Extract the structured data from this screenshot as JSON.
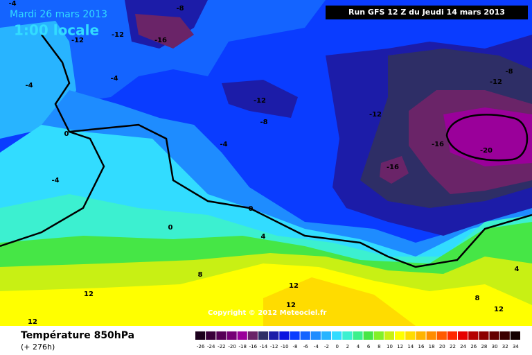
{
  "header": {
    "date": "Mardi 26 mars 2013",
    "time": "1:00 locale",
    "run": "Run GFS 12 Z du Jeudi 14 mars 2013",
    "copyright": "Copyright © 2012 Meteociel.fr"
  },
  "footer": {
    "title": "Température 850hPa",
    "lead": "(+ 276h)"
  },
  "contour_labels": [
    "-4",
    "-8",
    "-12",
    "-12",
    "-16",
    "-4",
    "-4",
    "-12",
    "-8",
    "-12",
    "-12",
    "-8",
    "-16",
    "-20",
    "-16",
    "-4",
    "0",
    "-4",
    "0",
    "0",
    "4",
    "8",
    "12",
    "12",
    "12",
    "8",
    "4",
    "12",
    "12"
  ],
  "scale": [
    {
      "value": -26,
      "color": "#1c001c"
    },
    {
      "value": -24,
      "color": "#3a003a"
    },
    {
      "value": -22,
      "color": "#560056"
    },
    {
      "value": -20,
      "color": "#760076"
    },
    {
      "value": -18,
      "color": "#9a009a"
    },
    {
      "value": -16,
      "color": "#6a2468"
    },
    {
      "value": -14,
      "color": "#2e2e66"
    },
    {
      "value": -12,
      "color": "#1c1ca8"
    },
    {
      "value": -10,
      "color": "#0a14e0"
    },
    {
      "value": -8,
      "color": "#0a3cff"
    },
    {
      "value": -6,
      "color": "#1464ff"
    },
    {
      "value": -4,
      "color": "#1e8cff"
    },
    {
      "value": -2,
      "color": "#28b4ff"
    },
    {
      "value": 0,
      "color": "#32dcff"
    },
    {
      "value": 2,
      "color": "#3cf0d0"
    },
    {
      "value": 4,
      "color": "#3cf08c"
    },
    {
      "value": 6,
      "color": "#46e646"
    },
    {
      "value": 8,
      "color": "#82f028"
    },
    {
      "value": 10,
      "color": "#c8f014"
    },
    {
      "value": 12,
      "color": "#ffff00"
    },
    {
      "value": 14,
      "color": "#ffdc00"
    },
    {
      "value": 16,
      "color": "#ffb400"
    },
    {
      "value": 18,
      "color": "#ff8c00"
    },
    {
      "value": 20,
      "color": "#ff5a00"
    },
    {
      "value": 22,
      "color": "#ff2800"
    },
    {
      "value": 24,
      "color": "#e60000"
    },
    {
      "value": 26,
      "color": "#b40000"
    },
    {
      "value": 28,
      "color": "#8c0000"
    },
    {
      "value": 30,
      "color": "#640000"
    },
    {
      "value": 32,
      "color": "#3c0000"
    },
    {
      "value": 34,
      "color": "#140000"
    }
  ]
}
